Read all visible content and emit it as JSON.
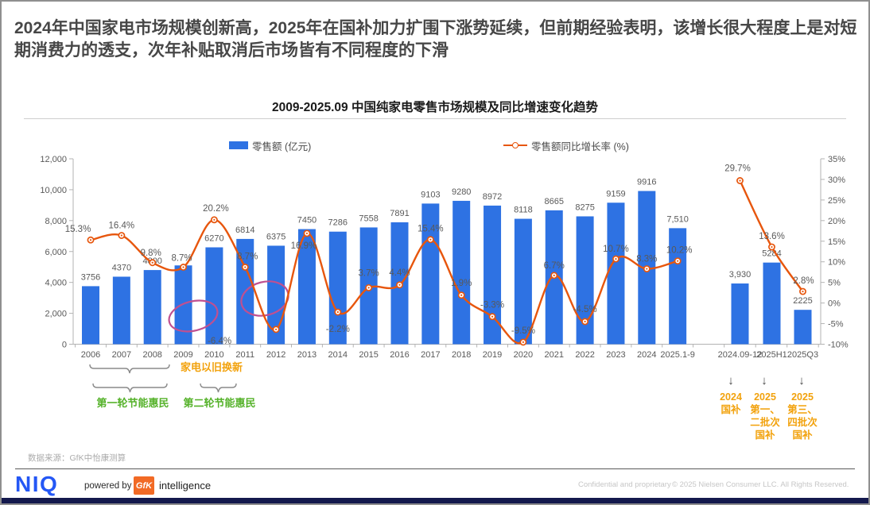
{
  "headline": {
    "text": "2024年中国家电市场规模创新高，2025年在国补加力扩围下涨势延续，但前期经验表明，该增长很大程度上是对短期消费力的透支，次年补贴取消后市场皆有不同程度的下滑"
  },
  "chart_title": "2009-2025.09 中国纯家电零售市场规模及同比增速变化趋势",
  "legend": {
    "bar_label": "零售额 (亿元)",
    "line_label": "零售额同比增长率 (%)"
  },
  "chart_data": {
    "type": "bar",
    "subtype": "combo bar + line, dual axis",
    "title": "2009-2025.09 中国纯家电零售市场规模及同比增速变化趋势",
    "ylabel_left": "零售额 (亿元)",
    "ylabel_right": "零售额同比增长率 (%)",
    "ylim_left": [
      0,
      12000
    ],
    "ylim_right": [
      -10,
      35
    ],
    "grid": false,
    "legend_position": "top",
    "left_axis_ticks": [
      "12,000",
      "10,000",
      "8,000",
      "6,000",
      "4,000",
      "2,000",
      "0"
    ],
    "right_axis_ticks": [
      "35%",
      "30%",
      "25%",
      "20%",
      "15%",
      "10%",
      "5%",
      "0%",
      "-5%",
      "-10%"
    ],
    "main": {
      "categories": [
        "2006",
        "2007",
        "2008",
        "2009",
        "2010",
        "2011",
        "2012",
        "2013",
        "2014",
        "2015",
        "2016",
        "2017",
        "2018",
        "2019",
        "2020",
        "2021",
        "2022",
        "2023",
        "2024",
        "2025.1-9"
      ],
      "retail_values": [
        3756,
        4370,
        4800,
        5100,
        6270,
        6814,
        6375,
        7450,
        7286,
        7558,
        7891,
        9103,
        9280,
        8972,
        8118,
        8665,
        8275,
        9159,
        9916,
        7510
      ],
      "retail_labels": [
        "3756",
        "4370",
        "4800",
        "",
        "6270",
        "6814",
        "6375",
        "7450",
        "7286",
        "7558",
        "7891",
        "9103",
        "9280",
        "8972",
        "8118",
        "8665",
        "8275",
        "9159",
        "9916",
        "7,510"
      ],
      "growth_pct": [
        15.3,
        16.4,
        9.8,
        8.7,
        20.2,
        8.7,
        -6.4,
        16.9,
        -2.2,
        3.7,
        4.4,
        15.4,
        1.9,
        -3.3,
        -9.5,
        6.7,
        -4.5,
        10.7,
        8.3,
        10.2
      ],
      "growth_labels": [
        "15.3%",
        "16.4%",
        "9.8%",
        "8.7%",
        "20.2%",
        "8.7%",
        "-6.4%",
        "16.9%",
        "-2.2%",
        "3.7%",
        "4.4%",
        "15.4%",
        "1.9%",
        "-3.3%",
        "-9.5%",
        "6.7%",
        "-4.5%",
        "10.7%",
        "8.3%",
        "10.2%"
      ]
    },
    "subsidy": {
      "categories": [
        "2024.09-12",
        "2025H1",
        "2025Q3"
      ],
      "retail_values": [
        3930,
        5284,
        2225
      ],
      "retail_labels": [
        "3,930",
        "5284",
        "2225"
      ],
      "growth_pct": [
        29.7,
        13.6,
        2.8
      ],
      "growth_labels": [
        "29.7%",
        "13.6%",
        "2.8%"
      ]
    }
  },
  "annotations": {
    "tradein": "家电以旧换新",
    "round1": "第一轮节能惠民",
    "round2": "第二轮节能惠民",
    "arrow": "↓",
    "subsidy_columns": [
      [
        "2024",
        "国补"
      ],
      [
        "2025",
        "第一、",
        "二批次",
        "国补"
      ],
      [
        "2025",
        "第三、",
        "四批次",
        "国补"
      ]
    ]
  },
  "source": "数据来源：GfK中怡康测算",
  "footer": {
    "niq": "NIQ",
    "powered_by": "powered by",
    "gfk": "GfK",
    "intelligence": "intelligence",
    "confidential": "Confidential and proprietary",
    "copyright": "© 2025 Nielsen Consumer LLC. All Rights Reserved."
  },
  "colors": {
    "bar_blue": "#2e72e3",
    "line_orange": "#e7560d",
    "amber": "#f2a20d",
    "green": "#55b22a",
    "pink": "#c05090",
    "label_gray": "#595959",
    "axis_gray": "#b3b3b3",
    "niq_blue": "#2457f5",
    "gfk_orange": "#f26a25",
    "strip_navy": "#14194d"
  }
}
